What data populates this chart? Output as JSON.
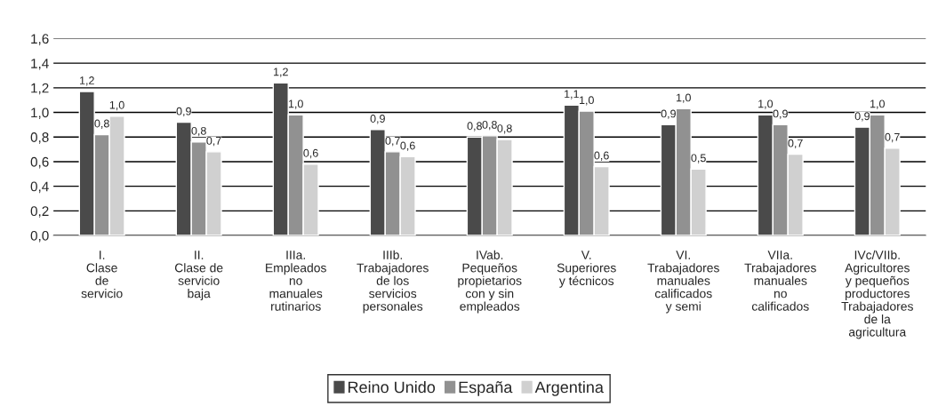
{
  "chart_data": {
    "type": "bar",
    "categories": [
      "I.\nClase\nde\nservicio",
      "II.\nClase de\nservicio\nbaja",
      "IIIa.\nEmpleados\nno\nmanuales\nrutinarios",
      "IIIb.\nTrabajadores\nde los\nservicios\npersonales",
      "IVab.\nPequeños\npropietarios\ncon y sin\nempleados",
      "V.\nSuperiores\ny técnicos",
      "VI.\nTrabajadores\nmanuales\ncalificados\ny semi",
      "VIIa.\nTrabajadores\nmanuales\nno\ncalificados",
      "IVc/VIIb.\nAgricultores\ny pequeños\nproductores\nTrabajadores\nde la\nagricultura"
    ],
    "series": [
      {
        "name": "Reino Unido",
        "color": "#4a4a4a",
        "values": [
          1.17,
          0.92,
          1.24,
          0.86,
          0.8,
          1.06,
          0.9,
          0.98,
          0.88
        ],
        "value_labels": [
          "1,2",
          "0,9",
          "1,2",
          "0,9",
          "0,8",
          "1,1",
          "0,9",
          "1,0",
          "0,9"
        ]
      },
      {
        "name": "España",
        "color": "#919191",
        "values": [
          0.82,
          0.76,
          0.98,
          0.68,
          0.81,
          1.01,
          1.03,
          0.9,
          0.98
        ],
        "value_labels": [
          "0,8",
          "0,8",
          "1,0",
          "0,7",
          "0,8",
          "1,0",
          "1,0",
          "0,9",
          "1,0"
        ]
      },
      {
        "name": "Argentina",
        "color": "#d0d0d0",
        "values": [
          0.97,
          0.68,
          0.58,
          0.64,
          0.78,
          0.56,
          0.54,
          0.66,
          0.71
        ],
        "value_labels": [
          "1,0",
          "0,7",
          "0,6",
          "0,6",
          "0,8",
          "0,6",
          "0,5",
          "0,7",
          "0,7"
        ]
      }
    ],
    "ylim": [
      0,
      1.6
    ],
    "yticks": [
      {
        "value": 0,
        "label": "0,0"
      },
      {
        "value": 0.2,
        "label": "0,2"
      },
      {
        "value": 0.4,
        "label": "0,4"
      },
      {
        "value": 0.6,
        "label": "0,6"
      },
      {
        "value": 0.8,
        "label": "0,8"
      },
      {
        "value": 1.0,
        "label": "1,0"
      },
      {
        "value": 1.2,
        "label": "1,2"
      },
      {
        "value": 1.4,
        "label": "1,4"
      },
      {
        "value": 1.6,
        "label": "1,6"
      }
    ],
    "grid": "y",
    "legend": "bottom"
  }
}
